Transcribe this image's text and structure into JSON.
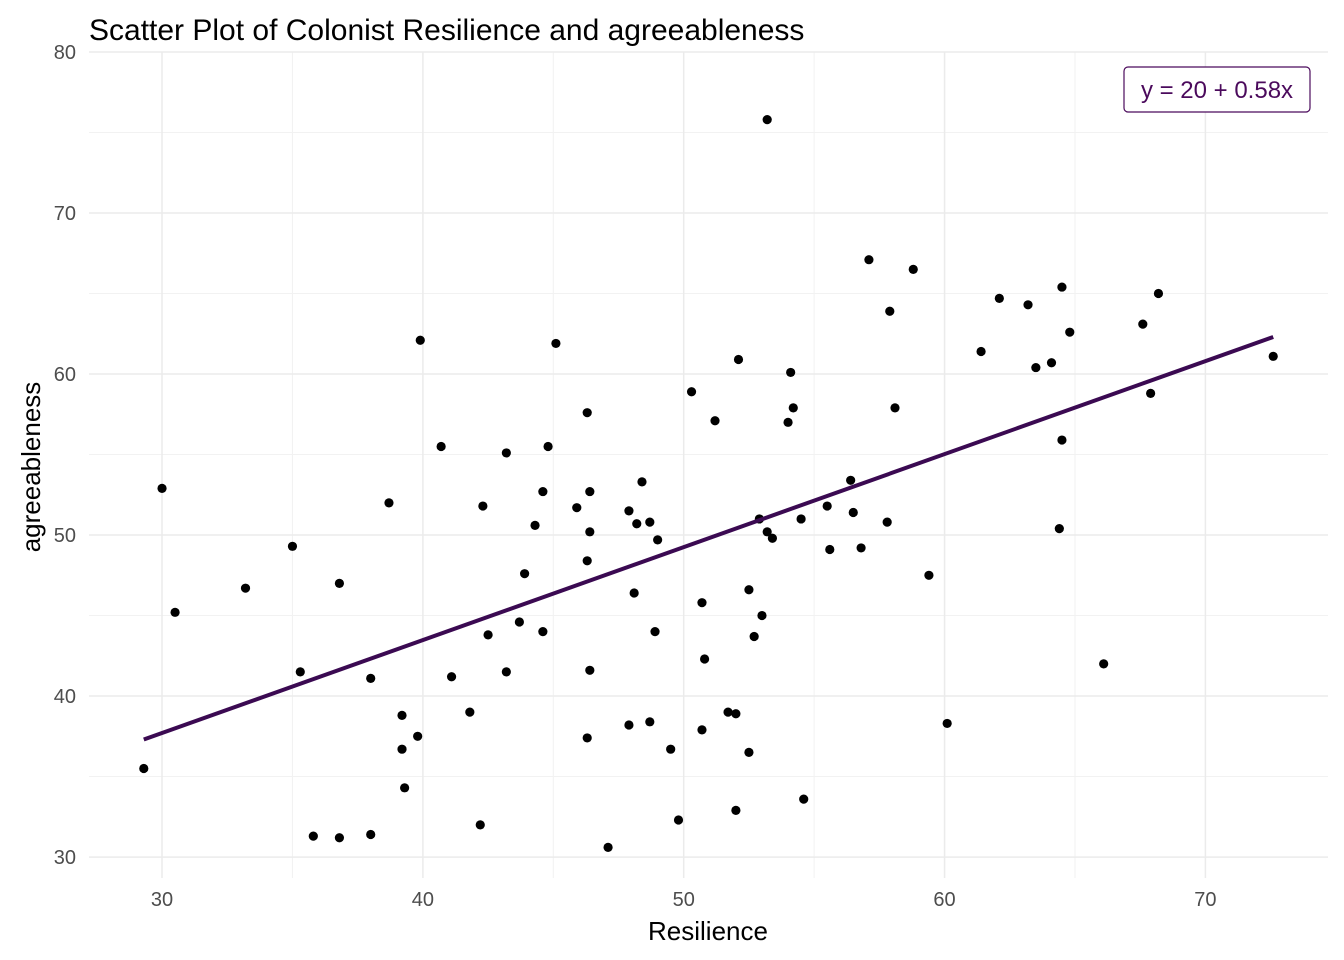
{
  "colors": {
    "background": "#ffffff",
    "grid_major": "#ebebeb",
    "grid_minor": "#f2f2f2",
    "points": "#000000",
    "fit_line": "#3b0a52",
    "annotation": "#4b0a5c",
    "tick_text": "#4d4d4d"
  },
  "chart_data": {
    "type": "scatter",
    "title": "Scatter Plot of Colonist Resilience and agreeableness",
    "xlabel": "Resilience",
    "ylabel": "agreeableness",
    "xlim": [
      27.2,
      74.7
    ],
    "ylim": [
      28.7,
      80.0
    ],
    "x_ticks": [
      30,
      40,
      50,
      60,
      70
    ],
    "y_ticks": [
      30,
      40,
      50,
      60,
      70,
      80
    ],
    "x_tick_labels": [
      "30",
      "40",
      "50",
      "60",
      "70"
    ],
    "y_tick_labels": [
      "30",
      "40",
      "50",
      "60",
      "70",
      "80"
    ],
    "grid": true,
    "annotation": {
      "text": "y = 20 + 0.58x",
      "position": "top-right"
    },
    "fit_line": {
      "x": [
        29.3,
        72.6
      ],
      "y": [
        37.3,
        62.3
      ]
    },
    "points": [
      [
        29.3,
        35.5
      ],
      [
        30.0,
        52.9
      ],
      [
        30.5,
        45.2
      ],
      [
        33.2,
        46.7
      ],
      [
        35.0,
        49.3
      ],
      [
        35.3,
        41.5
      ],
      [
        35.8,
        31.3
      ],
      [
        36.8,
        47.0
      ],
      [
        36.8,
        31.2
      ],
      [
        38.0,
        41.1
      ],
      [
        38.0,
        31.4
      ],
      [
        38.7,
        52.0
      ],
      [
        39.2,
        38.8
      ],
      [
        39.2,
        36.7
      ],
      [
        39.3,
        34.3
      ],
      [
        39.8,
        37.5
      ],
      [
        39.9,
        62.1
      ],
      [
        40.7,
        55.5
      ],
      [
        41.1,
        41.2
      ],
      [
        41.8,
        39.0
      ],
      [
        42.2,
        32.0
      ],
      [
        42.3,
        51.8
      ],
      [
        42.5,
        43.8
      ],
      [
        43.2,
        55.1
      ],
      [
        43.2,
        41.5
      ],
      [
        43.7,
        44.6
      ],
      [
        43.9,
        47.6
      ],
      [
        44.3,
        50.6
      ],
      [
        44.6,
        52.7
      ],
      [
        44.6,
        44.0
      ],
      [
        44.8,
        55.5
      ],
      [
        45.1,
        61.9
      ],
      [
        45.9,
        51.7
      ],
      [
        46.3,
        57.6
      ],
      [
        46.3,
        48.4
      ],
      [
        46.3,
        37.4
      ],
      [
        46.4,
        52.7
      ],
      [
        46.4,
        50.2
      ],
      [
        46.4,
        41.6
      ],
      [
        47.1,
        30.6
      ],
      [
        47.9,
        51.5
      ],
      [
        47.9,
        38.2
      ],
      [
        48.1,
        46.4
      ],
      [
        48.2,
        50.7
      ],
      [
        48.4,
        53.3
      ],
      [
        48.7,
        50.8
      ],
      [
        48.7,
        38.4
      ],
      [
        48.9,
        44.0
      ],
      [
        49.0,
        49.7
      ],
      [
        49.5,
        36.7
      ],
      [
        49.8,
        32.3
      ],
      [
        50.3,
        58.9
      ],
      [
        50.7,
        45.8
      ],
      [
        50.7,
        37.9
      ],
      [
        50.8,
        42.3
      ],
      [
        51.2,
        57.1
      ],
      [
        51.7,
        39.0
      ],
      [
        52.0,
        38.9
      ],
      [
        52.0,
        32.9
      ],
      [
        52.1,
        60.9
      ],
      [
        52.5,
        46.6
      ],
      [
        52.5,
        36.5
      ],
      [
        52.7,
        43.7
      ],
      [
        52.9,
        51.0
      ],
      [
        53.0,
        45.0
      ],
      [
        53.2,
        75.8
      ],
      [
        53.2,
        50.2
      ],
      [
        53.4,
        49.8
      ],
      [
        54.0,
        57.0
      ],
      [
        54.1,
        60.1
      ],
      [
        54.2,
        57.9
      ],
      [
        54.5,
        51.0
      ],
      [
        54.6,
        33.6
      ],
      [
        55.5,
        51.8
      ],
      [
        55.6,
        49.1
      ],
      [
        56.4,
        53.4
      ],
      [
        56.5,
        51.4
      ],
      [
        56.8,
        49.2
      ],
      [
        57.1,
        67.1
      ],
      [
        57.8,
        50.8
      ],
      [
        57.9,
        63.9
      ],
      [
        58.1,
        57.9
      ],
      [
        58.8,
        66.5
      ],
      [
        59.4,
        47.5
      ],
      [
        60.1,
        38.3
      ],
      [
        61.4,
        61.4
      ],
      [
        62.1,
        64.7
      ],
      [
        63.2,
        64.3
      ],
      [
        63.5,
        60.4
      ],
      [
        64.1,
        60.7
      ],
      [
        64.4,
        50.4
      ],
      [
        64.5,
        65.4
      ],
      [
        64.5,
        55.9
      ],
      [
        64.8,
        62.6
      ],
      [
        66.1,
        42.0
      ],
      [
        67.6,
        63.1
      ],
      [
        67.9,
        58.8
      ],
      [
        68.2,
        65.0
      ],
      [
        72.6,
        61.1
      ]
    ]
  }
}
